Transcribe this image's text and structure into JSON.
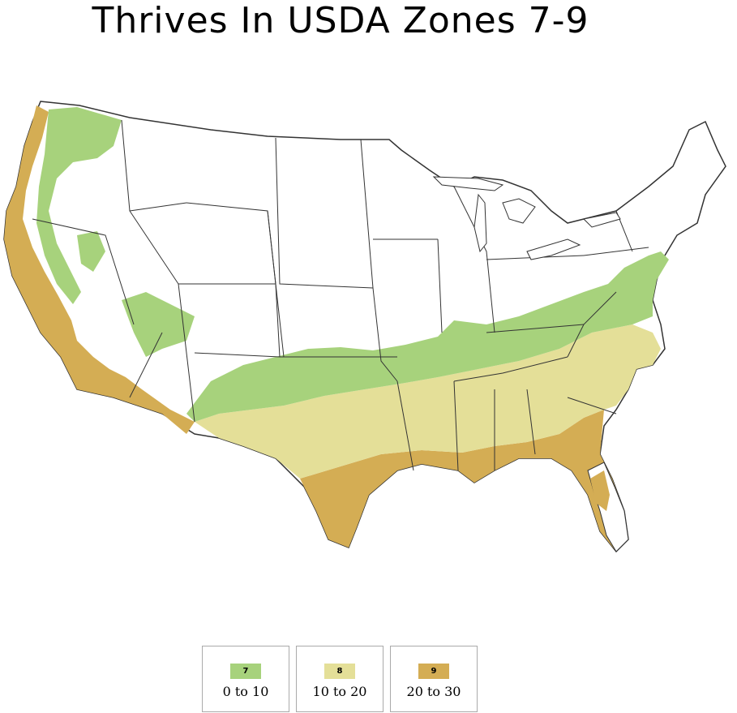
{
  "title": "Thrives In USDA Zones 7-9",
  "map": {
    "icon": "usda-hardiness-zone-map",
    "zone_colors": {
      "7": "#a7d27c",
      "8": "#e4df98",
      "9": "#d4ad54",
      "outline": "#333333"
    }
  },
  "legend": [
    {
      "zone": "7",
      "range": "0 to 10",
      "color": "#a7d27c"
    },
    {
      "zone": "8",
      "range": "10 to 20",
      "color": "#e4df98"
    },
    {
      "zone": "9",
      "range": "20 to 30",
      "color": "#d4ad54"
    }
  ]
}
